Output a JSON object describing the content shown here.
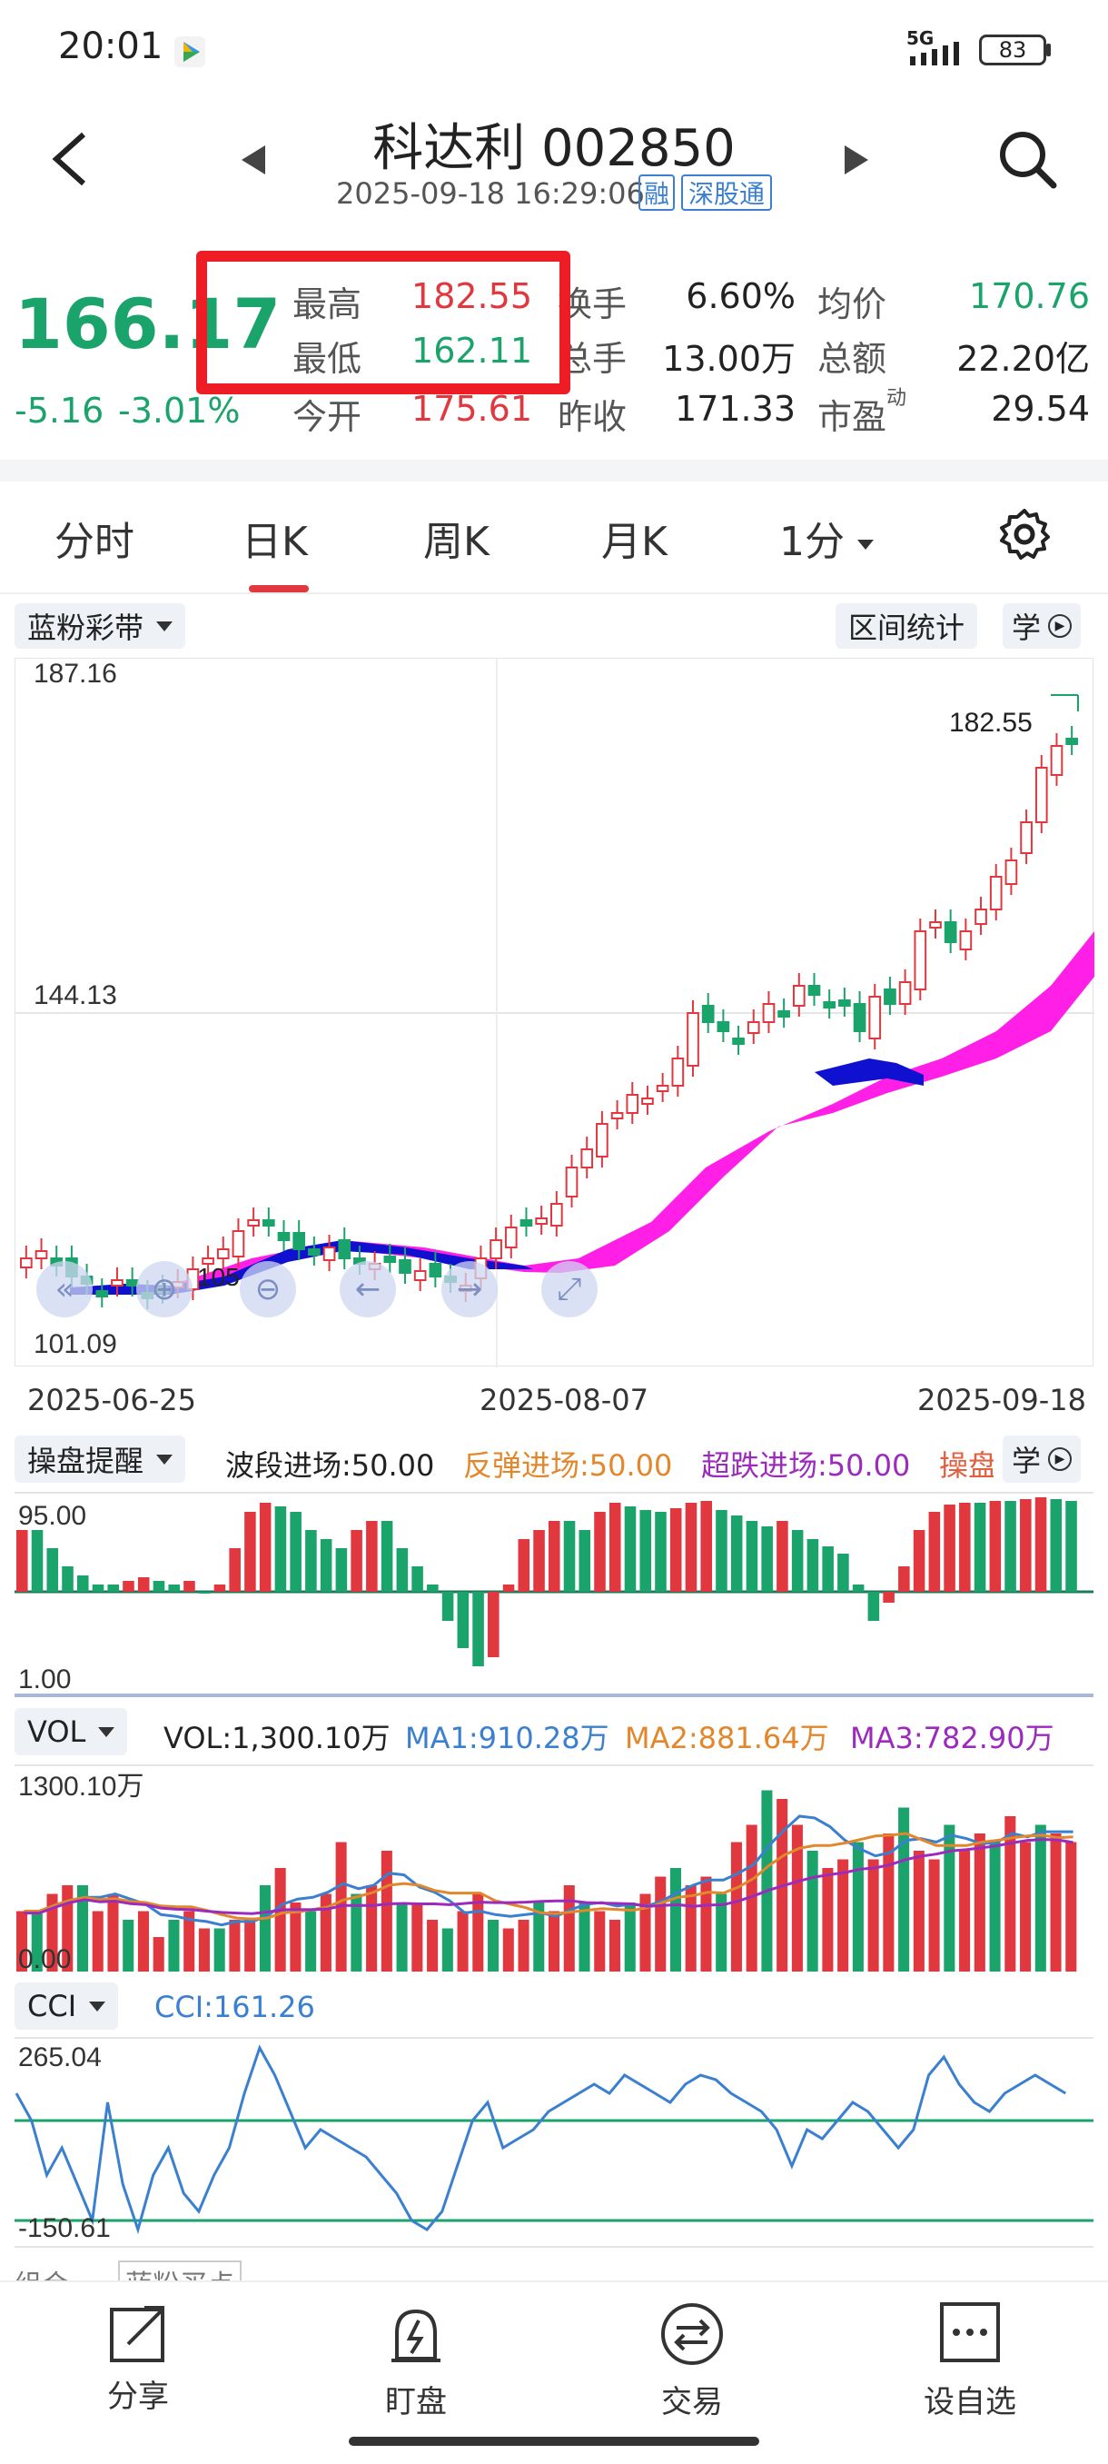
{
  "status_bar": {
    "time": "20:01",
    "network": "5G",
    "battery": "83"
  },
  "header": {
    "title": "科达利 002850",
    "datetime": "2025-09-18 16:29:06",
    "badges": [
      "融",
      "深股通"
    ]
  },
  "quote": {
    "price": "166.17",
    "change": "-5.16",
    "change_pct": "-3.01%",
    "high_label": "最高",
    "high": "182.55",
    "low_label": "最低",
    "low": "162.11",
    "open_label": "今开",
    "open": "175.61",
    "turnover_label": "换手",
    "turnover": "6.60%",
    "volume_label": "总手",
    "volume": "13.00万",
    "prev_close_label": "昨收",
    "prev_close": "171.33",
    "avg_label": "均价",
    "avg": "170.76",
    "amount_label": "总额",
    "amount": "22.20亿",
    "pe_label": "市盈",
    "pe_sup": "动",
    "pe": "29.54"
  },
  "tabs": [
    "分时",
    "日K",
    "周K",
    "月K",
    "1分"
  ],
  "active_tab": "日K",
  "main_chart": {
    "overlay_label": "蓝粉彩带",
    "range_stats_label": "区间统计",
    "learn_label": "学",
    "y_max": "187.16",
    "y_mid": "144.13",
    "y_min": "101.09",
    "high_marker": "182.55",
    "low_marker": "105",
    "dates": [
      "2025-06-25",
      "2025-08-07",
      "2025-09-18"
    ]
  },
  "signal_panel": {
    "label": "操盘提醒",
    "items": [
      "波段进场:50.00",
      "反弹进场:50.00",
      "超跌进场:50.00",
      "操盘"
    ],
    "y_max": "95.00",
    "y_min": "1.00",
    "learn_label": "学"
  },
  "vol_panel": {
    "label": "VOL",
    "vol": "VOL:1,300.10万",
    "ma1": "MA1:910.28万",
    "ma2": "MA2:881.64万",
    "ma3": "MA3:782.90万",
    "y_max": "1300.10万",
    "y_min": "0.00"
  },
  "cci_panel": {
    "label": "CCI",
    "value": "CCI:161.26",
    "y_max": "265.04",
    "y_min": "-150.61"
  },
  "bottom_hint": {
    "left": "组合",
    "right": "蓝粉买点"
  },
  "bottom_nav": [
    "分享",
    "盯盘",
    "交易",
    "设自选"
  ],
  "colors": {
    "up": "#e0383e",
    "down": "#1aa36b",
    "pink_band": "#ff1fe6",
    "blue_band": "#1010d0",
    "highlight_box": "#ee1c25"
  }
}
